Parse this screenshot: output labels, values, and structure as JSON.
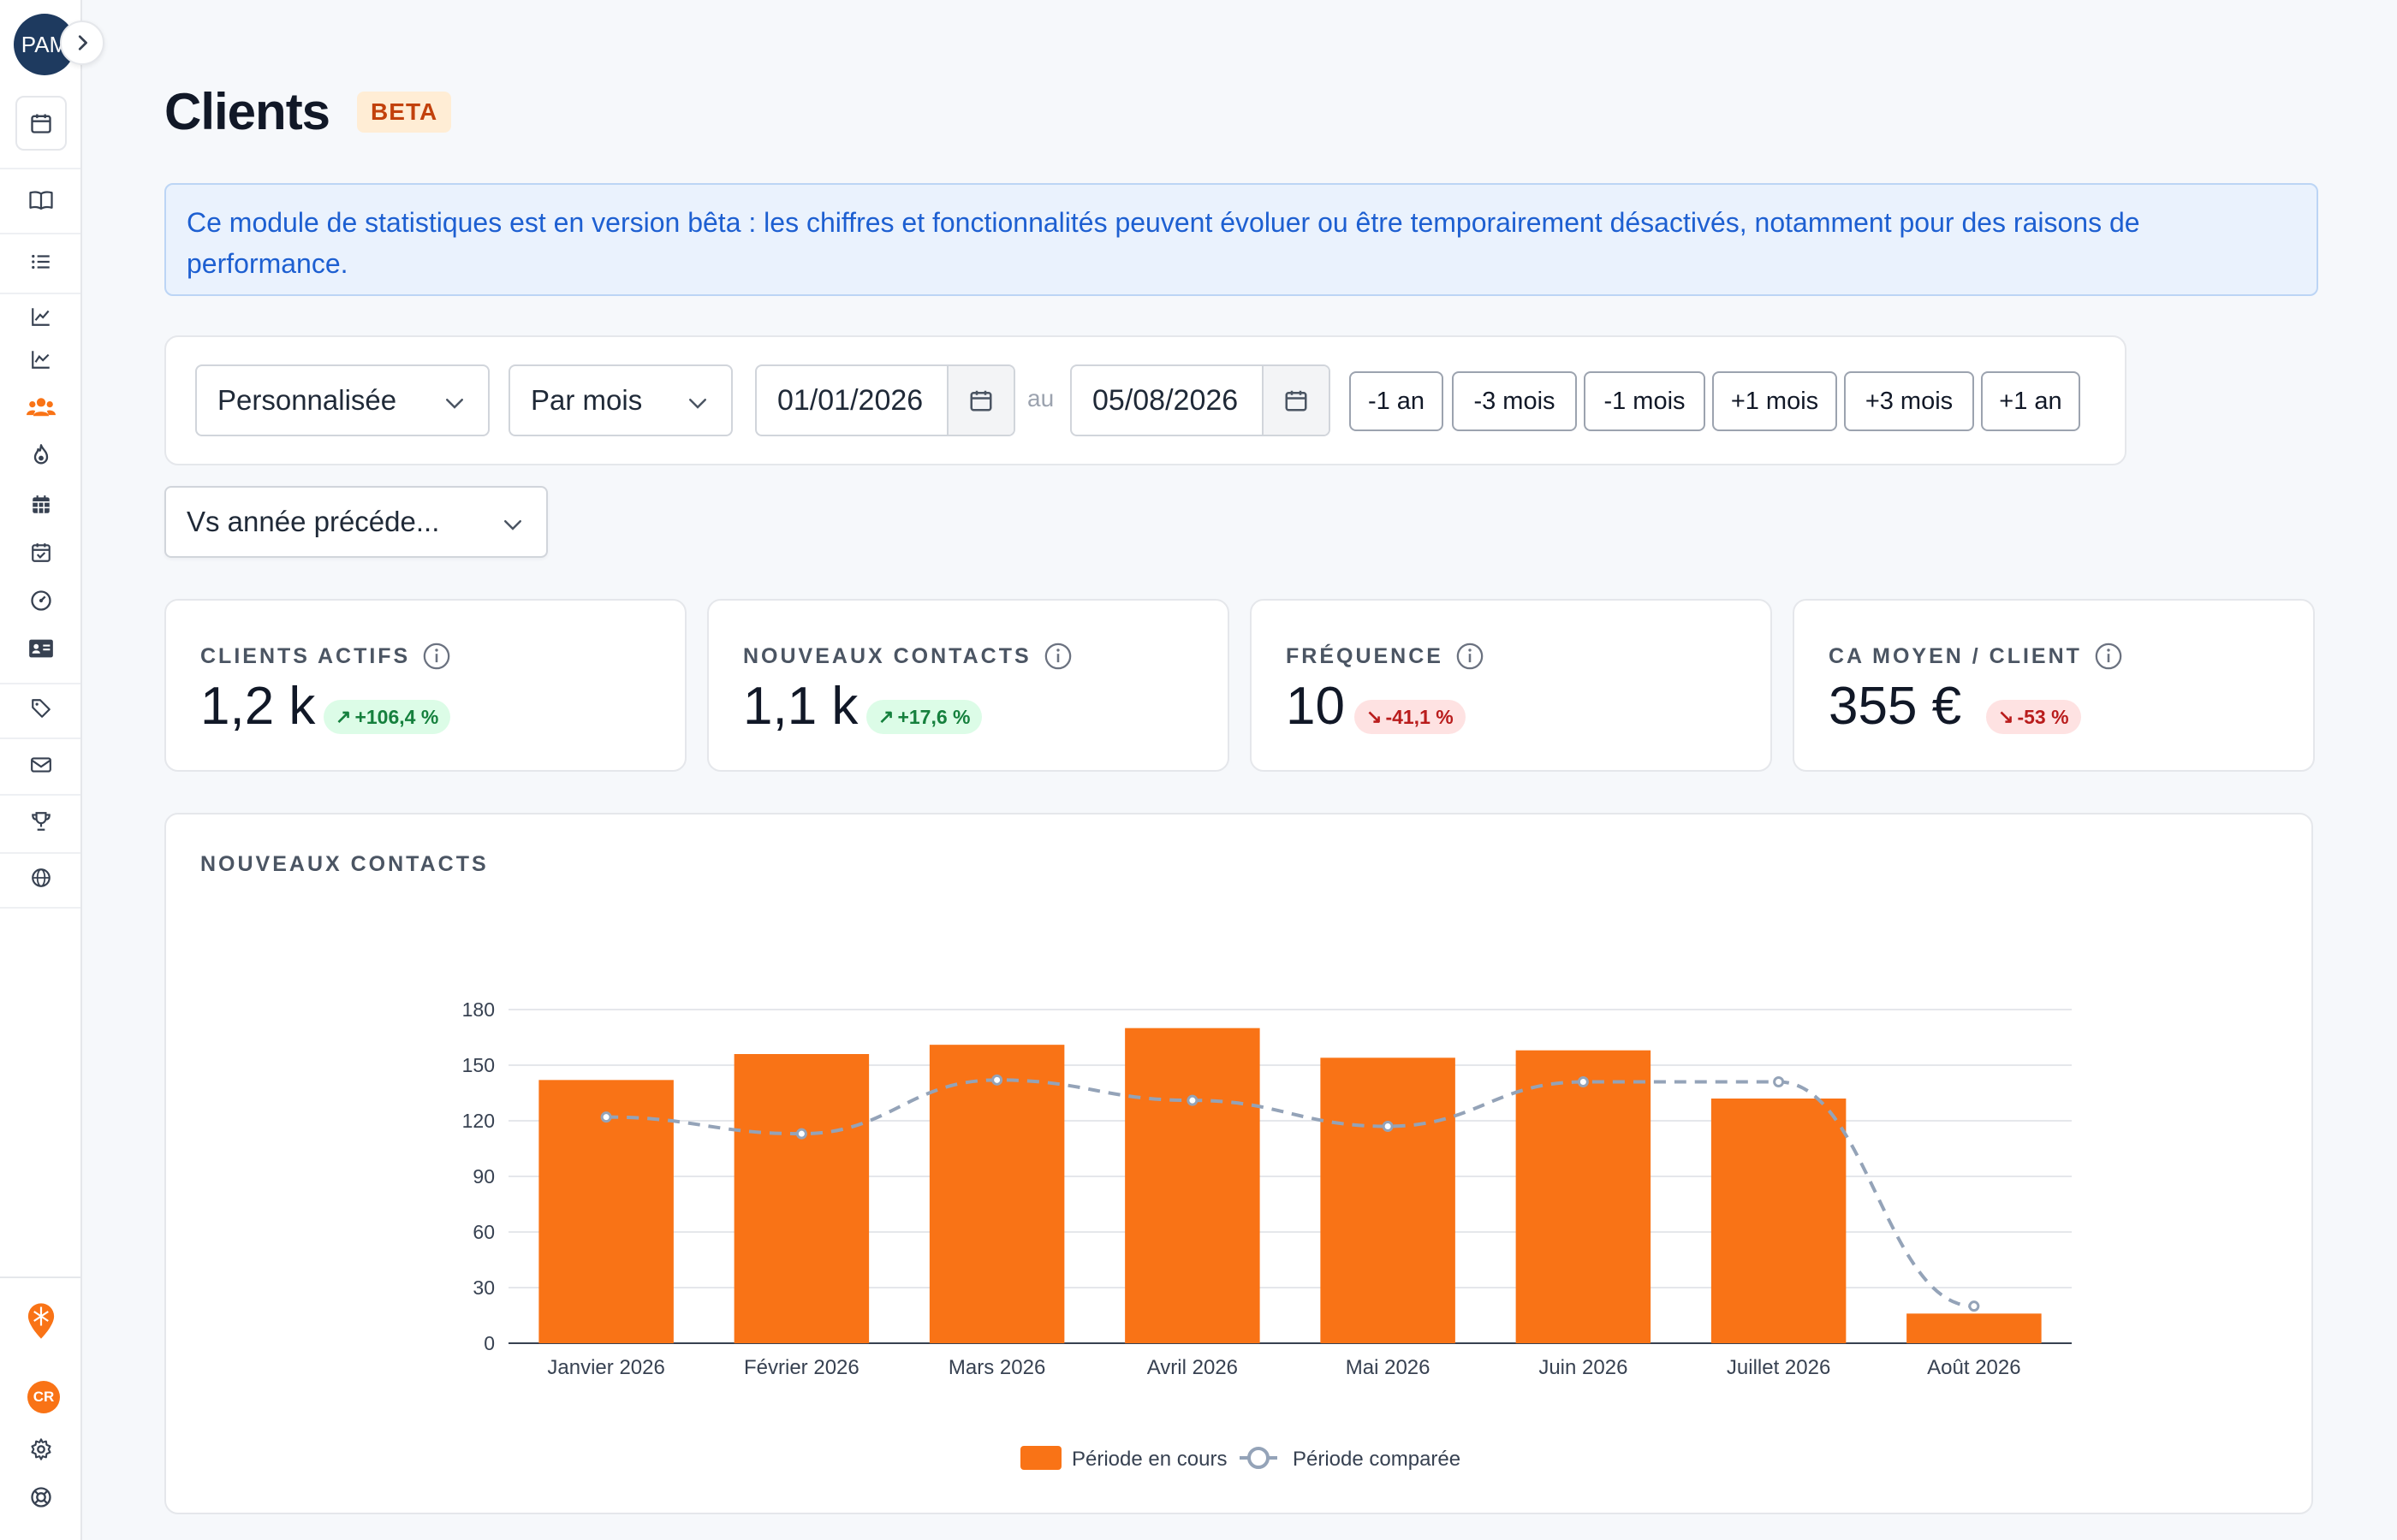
{
  "sidebar": {
    "avatar_text": "PAM",
    "cr_badge": "CR"
  },
  "page": {
    "title": "Clients",
    "badge": "BETA",
    "banner": "Ce module de statistiques est en version bêta : les chiffres et fonctionnalités peuvent évoluer ou être temporairement désactivés, notamment pour des raisons de performance."
  },
  "filters": {
    "period_select": "Personnalisée",
    "granularity_select": "Par mois",
    "date_from": "01/01/2026",
    "date_sep": "au",
    "date_to": "05/08/2026",
    "shift_buttons": [
      "-1 an",
      "-3 mois",
      "-1 mois",
      "+1 mois",
      "+3 mois",
      "+1 an"
    ],
    "compare_select": "Vs année précéde..."
  },
  "kpis": [
    {
      "label": "CLIENTS ACTIFS",
      "value": "1,2 k",
      "delta": "+106,4 %",
      "trend": "up"
    },
    {
      "label": "NOUVEAUX CONTACTS",
      "value": "1,1 k",
      "delta": "+17,6 %",
      "trend": "up"
    },
    {
      "label": "FRÉQUENCE",
      "value": "10",
      "delta": "-41,1 %",
      "trend": "down"
    },
    {
      "label": "CA MOYEN / CLIENT",
      "value": "355 €",
      "delta": "-53 %",
      "trend": "down"
    }
  ],
  "colors": {
    "accent": "#f97316",
    "compare_line": "#94a3b8",
    "up": "#15803d",
    "down": "#b91c1c"
  },
  "chart_data": {
    "type": "bar",
    "title": "NOUVEAUX CONTACTS",
    "categories": [
      "Janvier 2026",
      "Février 2026",
      "Mars 2026",
      "Avril 2026",
      "Mai 2026",
      "Juin 2026",
      "Juillet 2026",
      "Août 2026"
    ],
    "series": [
      {
        "name": "Période en cours",
        "kind": "bar",
        "values": [
          142,
          156,
          161,
          170,
          154,
          158,
          132,
          16
        ]
      },
      {
        "name": "Période comparée",
        "kind": "line",
        "values": [
          122,
          113,
          142,
          131,
          117,
          141,
          141,
          20
        ]
      }
    ],
    "ylim": [
      0,
      180
    ],
    "yticks": [
      0,
      30,
      60,
      90,
      120,
      150,
      180
    ],
    "grid": true,
    "legend": "bottom"
  }
}
